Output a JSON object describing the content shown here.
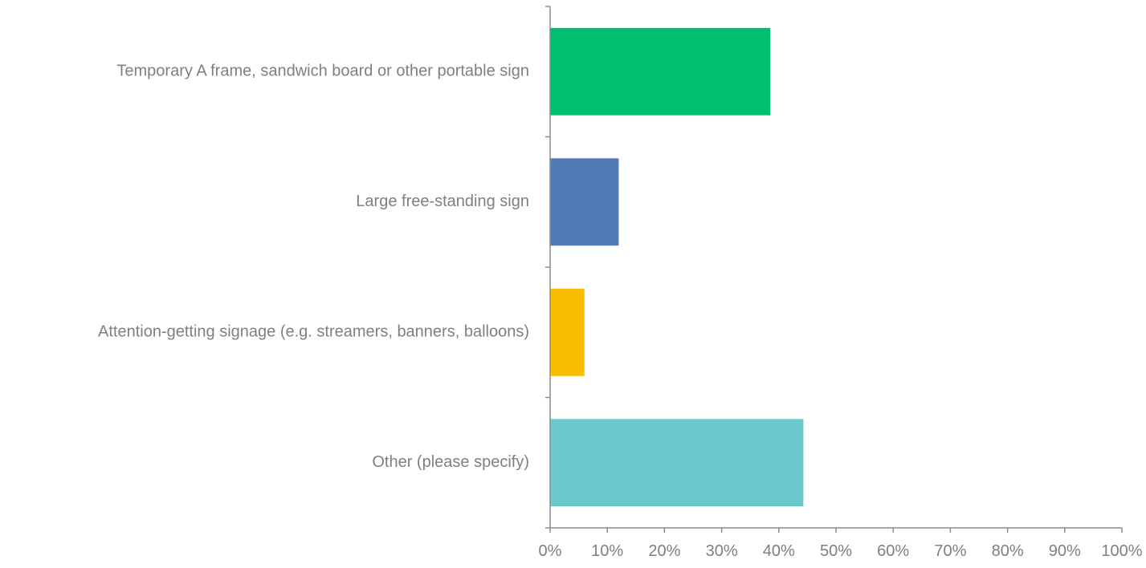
{
  "chart_data": {
    "type": "bar",
    "orientation": "horizontal",
    "categories": [
      "Temporary A frame, sandwich board or other portable sign",
      "Large free-standing sign",
      "Attention-getting signage (e.g. streamers, banners, balloons)",
      "Other (please specify)"
    ],
    "values": [
      38.5,
      12.0,
      6.0,
      44.3
    ],
    "colors": [
      "#00bf6f",
      "#507cb6",
      "#f9be00",
      "#6bc8cd"
    ],
    "xlim": [
      0,
      100
    ],
    "xticks": [
      0,
      10,
      20,
      30,
      40,
      50,
      60,
      70,
      80,
      90,
      100
    ],
    "xtick_labels": [
      "0%",
      "10%",
      "20%",
      "30%",
      "40%",
      "50%",
      "60%",
      "70%",
      "80%",
      "90%",
      "100%"
    ],
    "grid": false,
    "legend": "none",
    "title": "",
    "xlabel": "",
    "ylabel": ""
  }
}
